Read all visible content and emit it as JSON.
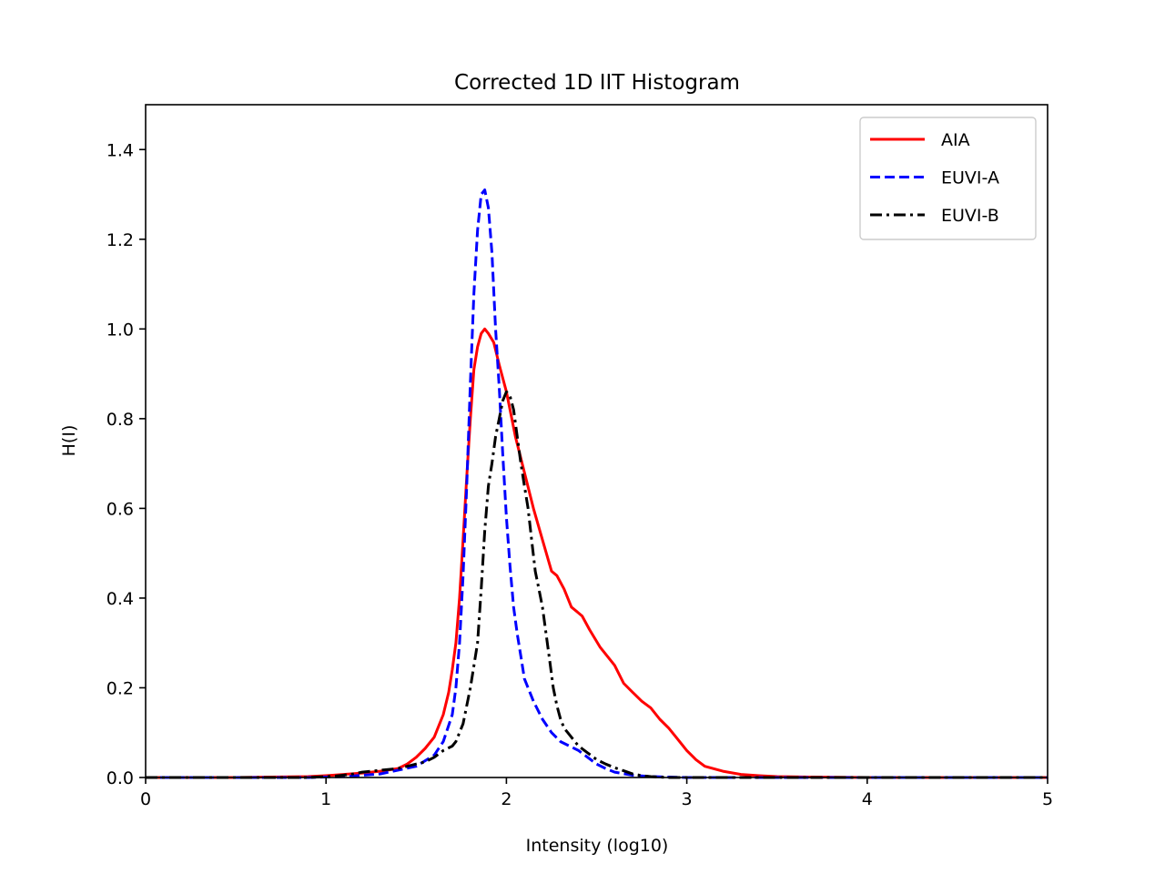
{
  "chart_data": {
    "type": "line",
    "title": "Corrected 1D IIT Histogram",
    "xlabel": "Intensity (log10)",
    "ylabel": "H(I)",
    "xlim": [
      0,
      5
    ],
    "ylim": [
      0,
      1.5
    ],
    "xticks": [
      0,
      1,
      2,
      3,
      4,
      5
    ],
    "xtick_labels": [
      "0",
      "1",
      "2",
      "3",
      "4",
      "5"
    ],
    "yticks": [
      0.0,
      0.2,
      0.4,
      0.6,
      0.8,
      1.0,
      1.2,
      1.4
    ],
    "ytick_labels": [
      "0.0",
      "0.2",
      "0.4",
      "0.6",
      "0.8",
      "1.0",
      "1.2",
      "1.4"
    ],
    "grid": false,
    "legend_position": "top-right",
    "series": [
      {
        "name": "AIA",
        "color": "#ff0000",
        "style": "solid",
        "x": [
          0,
          0.5,
          0.9,
          1.0,
          1.1,
          1.2,
          1.3,
          1.4,
          1.45,
          1.5,
          1.55,
          1.6,
          1.65,
          1.68,
          1.7,
          1.72,
          1.74,
          1.76,
          1.78,
          1.8,
          1.82,
          1.84,
          1.86,
          1.88,
          1.9,
          1.93,
          1.96,
          2.0,
          2.05,
          2.1,
          2.15,
          2.2,
          2.25,
          2.28,
          2.32,
          2.36,
          2.42,
          2.46,
          2.52,
          2.6,
          2.65,
          2.7,
          2.75,
          2.8,
          2.85,
          2.9,
          2.95,
          3.0,
          3.05,
          3.1,
          3.2,
          3.3,
          3.4,
          3.5,
          3.7,
          4.0,
          5.0
        ],
        "y": [
          0,
          0,
          0.002,
          0.004,
          0.007,
          0.01,
          0.014,
          0.02,
          0.03,
          0.045,
          0.065,
          0.09,
          0.14,
          0.19,
          0.24,
          0.3,
          0.4,
          0.53,
          0.67,
          0.8,
          0.91,
          0.96,
          0.99,
          1.0,
          0.99,
          0.97,
          0.92,
          0.86,
          0.76,
          0.68,
          0.6,
          0.53,
          0.46,
          0.45,
          0.42,
          0.38,
          0.36,
          0.33,
          0.29,
          0.25,
          0.21,
          0.19,
          0.17,
          0.155,
          0.13,
          0.11,
          0.085,
          0.06,
          0.04,
          0.025,
          0.014,
          0.007,
          0.004,
          0.002,
          0.001,
          0,
          0
        ]
      },
      {
        "name": "EUVI-A",
        "color": "#0000ff",
        "style": "dashed",
        "x": [
          0,
          0.9,
          1.1,
          1.3,
          1.5,
          1.6,
          1.65,
          1.7,
          1.72,
          1.74,
          1.76,
          1.78,
          1.8,
          1.82,
          1.84,
          1.86,
          1.88,
          1.9,
          1.92,
          1.94,
          1.96,
          1.98,
          2.0,
          2.02,
          2.04,
          2.06,
          2.08,
          2.1,
          2.15,
          2.2,
          2.25,
          2.3,
          2.35,
          2.4,
          2.45,
          2.5,
          2.55,
          2.6,
          2.7,
          2.8,
          2.9,
          3.0,
          5.0
        ],
        "y": [
          0,
          0,
          0.002,
          0.008,
          0.025,
          0.05,
          0.08,
          0.14,
          0.2,
          0.3,
          0.45,
          0.65,
          0.88,
          1.08,
          1.22,
          1.3,
          1.31,
          1.27,
          1.17,
          1.0,
          0.87,
          0.72,
          0.58,
          0.47,
          0.38,
          0.32,
          0.27,
          0.22,
          0.17,
          0.13,
          0.1,
          0.08,
          0.07,
          0.06,
          0.045,
          0.03,
          0.02,
          0.012,
          0.005,
          0.002,
          0.001,
          0,
          0
        ]
      },
      {
        "name": "EUVI-B",
        "color": "#000000",
        "style": "dashdot",
        "x": [
          0,
          0.9,
          1.05,
          1.15,
          1.2,
          1.25,
          1.3,
          1.35,
          1.4,
          1.45,
          1.5,
          1.55,
          1.6,
          1.65,
          1.7,
          1.72,
          1.76,
          1.8,
          1.84,
          1.86,
          1.88,
          1.9,
          1.92,
          1.94,
          1.96,
          1.98,
          2.0,
          2.02,
          2.04,
          2.06,
          2.08,
          2.1,
          2.12,
          2.14,
          2.16,
          2.18,
          2.2,
          2.22,
          2.24,
          2.26,
          2.28,
          2.3,
          2.32,
          2.34,
          2.36,
          2.38,
          2.4,
          2.45,
          2.5,
          2.55,
          2.6,
          2.65,
          2.7,
          2.75,
          2.8,
          2.9,
          5.0
        ],
        "y": [
          0,
          0,
          0.003,
          0.008,
          0.012,
          0.014,
          0.016,
          0.018,
          0.02,
          0.025,
          0.03,
          0.035,
          0.045,
          0.06,
          0.07,
          0.08,
          0.12,
          0.2,
          0.3,
          0.42,
          0.55,
          0.65,
          0.7,
          0.76,
          0.8,
          0.84,
          0.86,
          0.85,
          0.82,
          0.76,
          0.7,
          0.65,
          0.6,
          0.53,
          0.46,
          0.42,
          0.38,
          0.32,
          0.26,
          0.2,
          0.16,
          0.13,
          0.11,
          0.1,
          0.09,
          0.08,
          0.07,
          0.055,
          0.04,
          0.03,
          0.022,
          0.015,
          0.008,
          0.004,
          0.002,
          0,
          0
        ]
      }
    ]
  }
}
